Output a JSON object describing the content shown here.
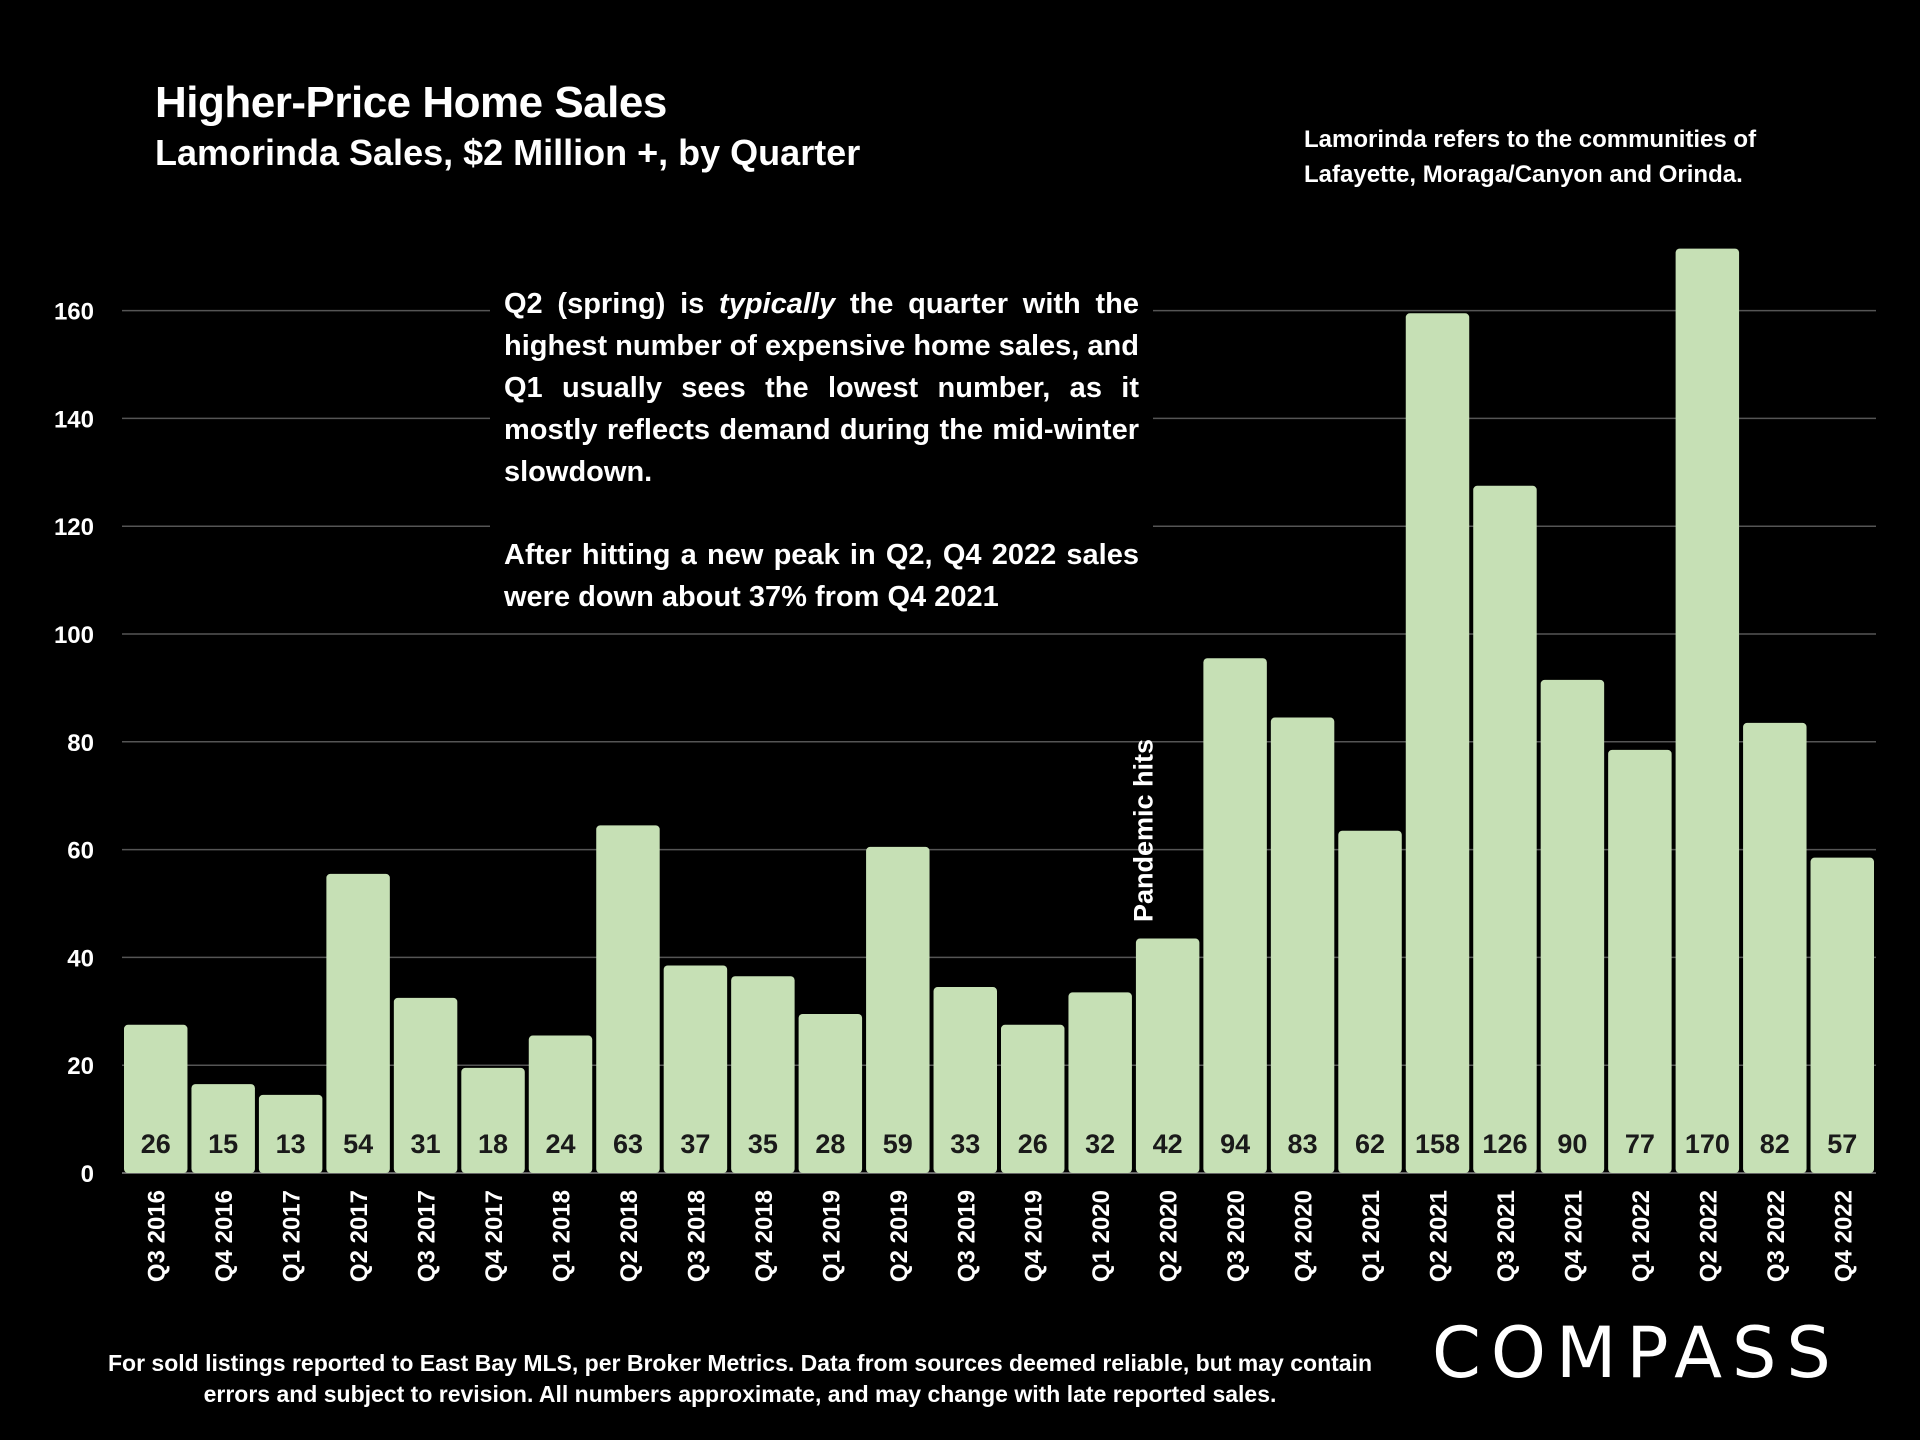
{
  "title": "Higher-Price Home Sales",
  "subtitle": "Lamorinda Sales, $2 Million +, by Quarter",
  "note": "Lamorinda refers to the communities of Lafayette, Moraga/Canyon and Orinda.",
  "annotation": {
    "p1_before": "Q2 (spring) is ",
    "p1_em": "typically",
    "p1_after": " the quarter with the highest number of expensive home sales, and Q1 usually sees the lowest number, as it mostly reflects demand during the mid-winter slowdown.",
    "p2": "After hitting a new peak in Q2, Q4 2022 sales were down about 37% from Q4 2021"
  },
  "pandemic_label": "Pandemic hits",
  "footnote": "For sold listings reported to East Bay MLS, per Broker Metrics. Data from sources deemed reliable, but may contain errors and subject to revision. All numbers approximate, and may change with late reported sales.",
  "logo": "COMPASS",
  "colors": {
    "bar": "#c6e0b5",
    "background": "#000000",
    "grid": "#555555"
  },
  "chart_data": {
    "type": "bar",
    "title": "Higher-Price Home Sales",
    "subtitle": "Lamorinda Sales, $2 Million +, by Quarter",
    "xlabel": "",
    "ylabel": "",
    "ylim": [
      0,
      170
    ],
    "yticks": [
      0,
      20,
      40,
      60,
      80,
      100,
      120,
      140,
      160
    ],
    "grid": true,
    "categories": [
      "Q3 2016",
      "Q4 2016",
      "Q1 2017",
      "Q2 2017",
      "Q3 2017",
      "Q4 2017",
      "Q1 2018",
      "Q2 2018",
      "Q3 2018",
      "Q4 2018",
      "Q1 2019",
      "Q2 2019",
      "Q3 2019",
      "Q4 2019",
      "Q1 2020",
      "Q2 2020",
      "Q3 2020",
      "Q4 2020",
      "Q1 2021",
      "Q2 2021",
      "Q3 2021",
      "Q4 2021",
      "Q1 2022",
      "Q2 2022",
      "Q3 2022",
      "Q4 2022"
    ],
    "values": [
      26,
      15,
      13,
      54,
      31,
      18,
      24,
      63,
      37,
      35,
      28,
      59,
      33,
      26,
      32,
      42,
      94,
      83,
      62,
      158,
      126,
      90,
      77,
      170,
      82,
      57
    ],
    "annotations": [
      {
        "category": "Q2 2020",
        "text": "Pandemic hits"
      }
    ]
  }
}
